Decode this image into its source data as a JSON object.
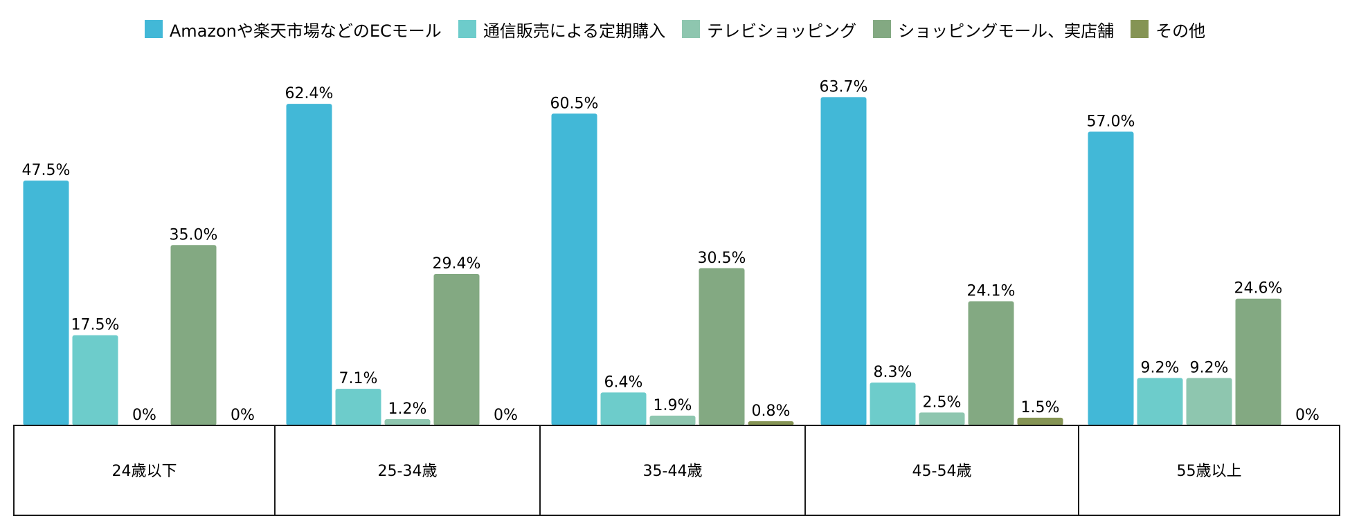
{
  "chart_data": {
    "type": "bar",
    "title": "",
    "xlabel": "",
    "ylabel": "",
    "ylim": [
      0,
      66
    ],
    "grid": false,
    "legend_position": "top",
    "categories": [
      "24歳以下",
      "25-34歳",
      "35-44歳",
      "45-54歳",
      "55歳以上"
    ],
    "series": [
      {
        "name": "Amazonや楽天市場などのECモール",
        "color": "#42B8D7",
        "values": [
          47.5,
          62.4,
          60.5,
          63.7,
          57.0
        ],
        "labels": [
          "47.5%",
          "62.4%",
          "60.5%",
          "63.7%",
          "57.0%"
        ]
      },
      {
        "name": "通信販売による定期購入",
        "color": "#6DCCCB",
        "values": [
          17.5,
          7.1,
          6.4,
          8.3,
          9.2
        ],
        "labels": [
          "17.5%",
          "7.1%",
          "6.4%",
          "8.3%",
          "9.2%"
        ]
      },
      {
        "name": "テレビショッピング",
        "color": "#8EC6AF",
        "values": [
          0,
          1.2,
          1.9,
          2.5,
          9.2
        ],
        "labels": [
          "0%",
          "1.2%",
          "1.9%",
          "2.5%",
          "9.2%"
        ]
      },
      {
        "name": "ショッピングモール、実店舗",
        "color": "#83A982",
        "values": [
          35.0,
          29.4,
          30.5,
          24.1,
          24.6
        ],
        "labels": [
          "35.0%",
          "29.4%",
          "30.5%",
          "24.1%",
          "24.6%"
        ]
      },
      {
        "name": "その他",
        "color": "#859454",
        "values": [
          0,
          0,
          0.8,
          1.5,
          0
        ],
        "labels": [
          "0%",
          "0%",
          "0.8%",
          "1.5%",
          "0%"
        ]
      }
    ]
  }
}
